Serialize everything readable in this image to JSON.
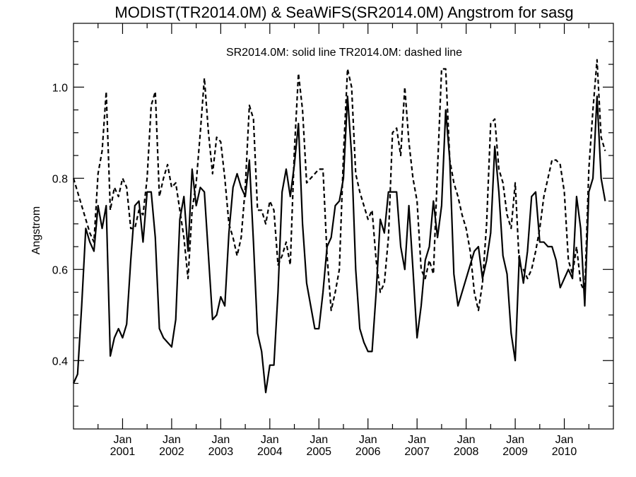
{
  "chart_data": {
    "type": "line",
    "title": "MODIST(TR2014.0M) & SeaWiFS(SR2014.0M)   Angstrom for sasg",
    "annotation": "SR2014.0M: solid line   TR2014.0M: dashed line",
    "ylabel": "Angstrom",
    "xlabel": "",
    "xlim": [
      "2000-01",
      "2010-12"
    ],
    "ylim": [
      0.25,
      1.14
    ],
    "y_ticks": [
      0.4,
      0.6,
      0.8,
      1.0
    ],
    "y_tick_labels": [
      "0.4",
      "0.6",
      "0.8",
      "1.0"
    ],
    "x_ticks": [
      {
        "month": "Jan",
        "year": "2001",
        "date": "2001-01"
      },
      {
        "month": "Jan",
        "year": "2002",
        "date": "2002-01"
      },
      {
        "month": "Jan",
        "year": "2003",
        "date": "2003-01"
      },
      {
        "month": "Jan",
        "year": "2004",
        "date": "2004-01"
      },
      {
        "month": "Jan",
        "year": "2005",
        "date": "2005-01"
      },
      {
        "month": "Jan",
        "year": "2006",
        "date": "2006-01"
      },
      {
        "month": "Jan",
        "year": "2007",
        "date": "2007-01"
      },
      {
        "month": "Jan",
        "year": "2008",
        "date": "2008-01"
      },
      {
        "month": "Jan",
        "year": "2009",
        "date": "2009-01"
      },
      {
        "month": "Jan",
        "year": "2010",
        "date": "2010-01"
      }
    ],
    "grid": false,
    "series": [
      {
        "name": "SR2014.0M",
        "style": "solid",
        "color": "#000000",
        "points": [
          [
            "2000-01",
            0.35
          ],
          [
            "2000-02",
            0.37
          ],
          [
            "2000-03",
            0.52
          ],
          [
            "2000-04",
            0.69
          ],
          [
            "2000-05",
            0.66
          ],
          [
            "2000-06",
            0.64
          ],
          [
            "2000-07",
            0.74
          ],
          [
            "2000-08",
            0.69
          ],
          [
            "2000-09",
            0.74
          ],
          [
            "2000-10",
            0.41
          ],
          [
            "2000-11",
            0.45
          ],
          [
            "2000-12",
            0.47
          ],
          [
            "2001-01",
            0.45
          ],
          [
            "2001-02",
            0.48
          ],
          [
            "2001-03",
            0.62
          ],
          [
            "2001-04",
            0.74
          ],
          [
            "2001-05",
            0.75
          ],
          [
            "2001-06",
            0.66
          ],
          [
            "2001-07",
            0.77
          ],
          [
            "2001-08",
            0.77
          ],
          [
            "2001-09",
            0.67
          ],
          [
            "2001-10",
            0.47
          ],
          [
            "2001-11",
            0.45
          ],
          [
            "2001-12",
            0.44
          ],
          [
            "2002-01",
            0.43
          ],
          [
            "2002-02",
            0.49
          ],
          [
            "2002-03",
            0.71
          ],
          [
            "2002-04",
            0.76
          ],
          [
            "2002-05",
            0.64
          ],
          [
            "2002-06",
            0.82
          ],
          [
            "2002-07",
            0.74
          ],
          [
            "2002-08",
            0.78
          ],
          [
            "2002-09",
            0.77
          ],
          [
            "2002-10",
            0.63
          ],
          [
            "2002-11",
            0.49
          ],
          [
            "2002-12",
            0.5
          ],
          [
            "2003-01",
            0.54
          ],
          [
            "2003-02",
            0.52
          ],
          [
            "2003-03",
            0.68
          ],
          [
            "2003-04",
            0.78
          ],
          [
            "2003-05",
            0.81
          ],
          [
            "2003-06",
            0.78
          ],
          [
            "2003-07",
            0.76
          ],
          [
            "2003-08",
            0.84
          ],
          [
            "2003-09",
            0.66
          ],
          [
            "2003-10",
            0.46
          ],
          [
            "2003-11",
            0.42
          ],
          [
            "2003-12",
            0.33
          ],
          [
            "2004-01",
            0.39
          ],
          [
            "2004-02",
            0.39
          ],
          [
            "2004-03",
            0.55
          ],
          [
            "2004-04",
            0.77
          ],
          [
            "2004-05",
            0.82
          ],
          [
            "2004-06",
            0.76
          ],
          [
            "2004-07",
            0.83
          ],
          [
            "2004-08",
            0.92
          ],
          [
            "2004-09",
            0.7
          ],
          [
            "2004-10",
            0.57
          ],
          [
            "2004-11",
            0.52
          ],
          [
            "2004-12",
            0.47
          ],
          [
            "2005-01",
            0.47
          ],
          [
            "2005-02",
            0.55
          ],
          [
            "2005-03",
            0.65
          ],
          [
            "2005-04",
            0.67
          ],
          [
            "2005-05",
            0.74
          ],
          [
            "2005-06",
            0.75
          ],
          [
            "2005-07",
            0.8
          ],
          [
            "2005-08",
            0.98
          ],
          [
            "2005-09",
            0.85
          ],
          [
            "2005-10",
            0.6
          ],
          [
            "2005-11",
            0.47
          ],
          [
            "2005-12",
            0.44
          ],
          [
            "2006-01",
            0.42
          ],
          [
            "2006-02",
            0.42
          ],
          [
            "2006-03",
            0.55
          ],
          [
            "2006-04",
            0.71
          ],
          [
            "2006-05",
            0.68
          ],
          [
            "2006-06",
            0.77
          ],
          [
            "2006-07",
            0.77
          ],
          [
            "2006-08",
            0.77
          ],
          [
            "2006-09",
            0.65
          ],
          [
            "2006-10",
            0.6
          ],
          [
            "2006-11",
            0.74
          ],
          [
            "2006-12",
            0.6
          ],
          [
            "2007-01",
            0.45
          ],
          [
            "2007-02",
            0.52
          ],
          [
            "2007-03",
            0.62
          ],
          [
            "2007-04",
            0.65
          ],
          [
            "2007-05",
            0.75
          ],
          [
            "2007-06",
            0.67
          ],
          [
            "2007-07",
            0.74
          ],
          [
            "2007-08",
            0.95
          ],
          [
            "2007-09",
            0.84
          ],
          [
            "2007-10",
            0.59
          ],
          [
            "2007-11",
            0.52
          ],
          [
            "2007-12",
            0.55
          ],
          [
            "2008-01",
            0.58
          ],
          [
            "2008-02",
            0.61
          ],
          [
            "2008-03",
            0.64
          ],
          [
            "2008-04",
            0.65
          ],
          [
            "2008-05",
            0.58
          ],
          [
            "2008-06",
            0.62
          ],
          [
            "2008-07",
            0.68
          ],
          [
            "2008-08",
            0.87
          ],
          [
            "2008-09",
            0.77
          ],
          [
            "2008-10",
            0.63
          ],
          [
            "2008-11",
            0.59
          ],
          [
            "2008-12",
            0.46
          ],
          [
            "2009-01",
            0.4
          ],
          [
            "2009-02",
            0.63
          ],
          [
            "2009-03",
            0.57
          ],
          [
            "2009-04",
            0.64
          ],
          [
            "2009-05",
            0.76
          ],
          [
            "2009-06",
            0.77
          ],
          [
            "2009-07",
            0.66
          ],
          [
            "2009-08",
            0.66
          ],
          [
            "2009-09",
            0.65
          ],
          [
            "2009-10",
            0.65
          ],
          [
            "2009-11",
            0.62
          ],
          [
            "2009-12",
            0.56
          ],
          [
            "2010-01",
            0.58
          ],
          [
            "2010-02",
            0.6
          ],
          [
            "2010-03",
            0.58
          ],
          [
            "2010-04",
            0.76
          ],
          [
            "2010-05",
            0.69
          ],
          [
            "2010-06",
            0.52
          ],
          [
            "2010-07",
            0.77
          ],
          [
            "2010-08",
            0.8
          ],
          [
            "2010-09",
            0.98
          ],
          [
            "2010-10",
            0.8
          ],
          [
            "2010-11",
            0.75
          ]
        ]
      },
      {
        "name": "TR2014.0M",
        "style": "dashed",
        "color": "#000000",
        "points": [
          [
            "2000-01",
            0.8
          ],
          [
            "2000-02",
            0.77
          ],
          [
            "2000-03",
            0.74
          ],
          [
            "2000-04",
            0.71
          ],
          [
            "2000-05",
            0.68
          ],
          [
            "2000-06",
            0.66
          ],
          [
            "2000-07",
            0.81
          ],
          [
            "2000-08",
            0.86
          ],
          [
            "2000-09",
            0.99
          ],
          [
            "2000-10",
            0.73
          ],
          [
            "2000-11",
            0.78
          ],
          [
            "2000-12",
            0.76
          ],
          [
            "2001-01",
            0.8
          ],
          [
            "2001-02",
            0.78
          ],
          [
            "2001-03",
            0.69
          ],
          [
            "2001-04",
            0.69
          ],
          [
            "2001-05",
            0.73
          ],
          [
            "2001-06",
            0.72
          ],
          [
            "2001-07",
            0.8
          ],
          [
            "2001-08",
            0.96
          ],
          [
            "2001-09",
            0.99
          ],
          [
            "2001-10",
            0.76
          ],
          [
            "2001-11",
            0.8
          ],
          [
            "2001-12",
            0.83
          ],
          [
            "2002-01",
            0.78
          ],
          [
            "2002-02",
            0.79
          ],
          [
            "2002-03",
            0.73
          ],
          [
            "2002-04",
            0.67
          ],
          [
            "2002-05",
            0.58
          ],
          [
            "2002-06",
            0.73
          ],
          [
            "2002-07",
            0.79
          ],
          [
            "2002-08",
            0.9
          ],
          [
            "2002-09",
            1.02
          ],
          [
            "2002-10",
            0.9
          ],
          [
            "2002-11",
            0.81
          ],
          [
            "2002-12",
            0.89
          ],
          [
            "2003-01",
            0.88
          ],
          [
            "2003-02",
            0.8
          ],
          [
            "2003-03",
            0.7
          ],
          [
            "2003-04",
            0.67
          ],
          [
            "2003-05",
            0.63
          ],
          [
            "2003-06",
            0.67
          ],
          [
            "2003-07",
            0.78
          ],
          [
            "2003-08",
            0.96
          ],
          [
            "2003-09",
            0.93
          ],
          [
            "2003-10",
            0.73
          ],
          [
            "2003-11",
            0.73
          ],
          [
            "2003-12",
            0.7
          ],
          [
            "2004-01",
            0.75
          ],
          [
            "2004-02",
            0.73
          ],
          [
            "2004-03",
            0.61
          ],
          [
            "2004-04",
            0.63
          ],
          [
            "2004-05",
            0.66
          ],
          [
            "2004-06",
            0.61
          ],
          [
            "2004-07",
            0.86
          ],
          [
            "2004-08",
            1.03
          ],
          [
            "2004-09",
            0.95
          ],
          [
            "2004-10",
            0.79
          ],
          [
            "2004-11",
            0.8
          ],
          [
            "2004-12",
            0.81
          ],
          [
            "2005-01",
            0.82
          ],
          [
            "2005-02",
            0.82
          ],
          [
            "2005-03",
            0.63
          ],
          [
            "2005-04",
            0.51
          ],
          [
            "2005-05",
            0.55
          ],
          [
            "2005-06",
            0.6
          ],
          [
            "2005-07",
            0.85
          ],
          [
            "2005-08",
            1.04
          ],
          [
            "2005-09",
            1.0
          ],
          [
            "2005-10",
            0.81
          ],
          [
            "2005-11",
            0.77
          ],
          [
            "2005-12",
            0.74
          ],
          [
            "2006-01",
            0.71
          ],
          [
            "2006-02",
            0.73
          ],
          [
            "2006-03",
            0.62
          ],
          [
            "2006-04",
            0.55
          ],
          [
            "2006-05",
            0.57
          ],
          [
            "2006-06",
            0.67
          ],
          [
            "2006-07",
            0.9
          ],
          [
            "2006-08",
            0.91
          ],
          [
            "2006-09",
            0.85
          ],
          [
            "2006-10",
            1.0
          ],
          [
            "2006-11",
            0.88
          ],
          [
            "2006-12",
            0.8
          ],
          [
            "2007-01",
            0.75
          ],
          [
            "2007-02",
            0.6
          ],
          [
            "2007-03",
            0.58
          ],
          [
            "2007-04",
            0.62
          ],
          [
            "2007-05",
            0.59
          ],
          [
            "2007-06",
            0.82
          ],
          [
            "2007-07",
            1.04
          ],
          [
            "2007-08",
            1.04
          ],
          [
            "2007-09",
            0.84
          ],
          [
            "2007-10",
            0.79
          ],
          [
            "2007-11",
            0.76
          ],
          [
            "2007-12",
            0.72
          ],
          [
            "2008-01",
            0.69
          ],
          [
            "2008-02",
            0.64
          ],
          [
            "2008-03",
            0.55
          ],
          [
            "2008-04",
            0.51
          ],
          [
            "2008-05",
            0.57
          ],
          [
            "2008-06",
            0.7
          ],
          [
            "2008-07",
            0.92
          ],
          [
            "2008-08",
            0.93
          ],
          [
            "2008-09",
            0.82
          ],
          [
            "2008-10",
            0.79
          ],
          [
            "2008-11",
            0.72
          ],
          [
            "2008-12",
            0.69
          ],
          [
            "2009-01",
            0.79
          ],
          [
            "2009-02",
            0.61
          ],
          [
            "2009-03",
            0.6
          ],
          [
            "2009-04",
            0.58
          ],
          [
            "2009-05",
            0.6
          ],
          [
            "2009-06",
            0.64
          ],
          [
            "2009-07",
            0.69
          ],
          [
            "2009-08",
            0.76
          ],
          [
            "2009-09",
            0.8
          ],
          [
            "2009-10",
            0.84
          ],
          [
            "2009-11",
            0.84
          ],
          [
            "2009-12",
            0.83
          ],
          [
            "2010-01",
            0.77
          ],
          [
            "2010-02",
            0.62
          ],
          [
            "2010-03",
            0.59
          ],
          [
            "2010-04",
            0.65
          ],
          [
            "2010-05",
            0.57
          ],
          [
            "2010-06",
            0.55
          ],
          [
            "2010-07",
            0.82
          ],
          [
            "2010-08",
            0.95
          ],
          [
            "2010-09",
            1.06
          ],
          [
            "2010-10",
            0.89
          ],
          [
            "2010-11",
            0.86
          ]
        ]
      }
    ]
  }
}
